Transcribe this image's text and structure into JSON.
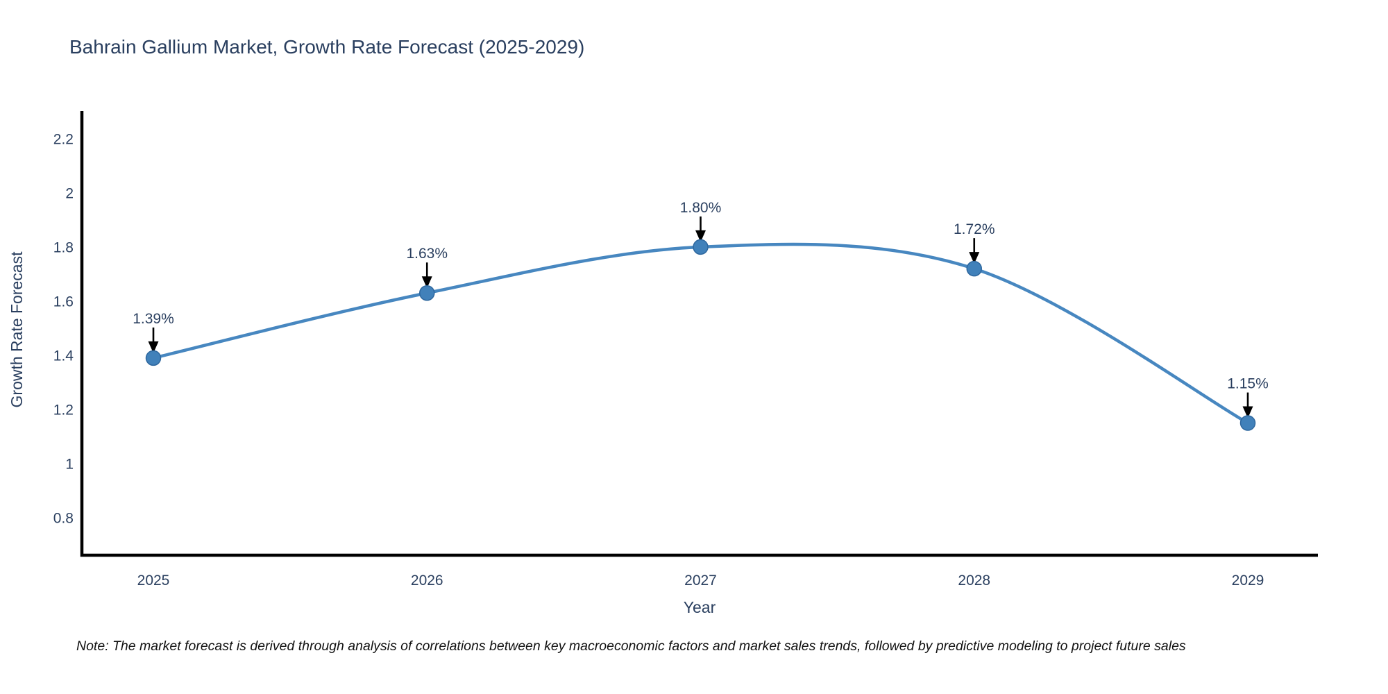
{
  "title": "Bahrain Gallium Market, Growth Rate Forecast (2025-2029)",
  "note": "Note: The market forecast is derived through analysis of correlations between key macroeconomic factors and market sales trends, followed by predictive modeling to project future sales",
  "chart_data": {
    "type": "line",
    "title": "Bahrain Gallium Market, Growth Rate Forecast (2025-2029)",
    "xlabel": "Year",
    "ylabel": "Growth Rate Forecast",
    "x": [
      2025,
      2026,
      2027,
      2028,
      2029
    ],
    "x_tick_labels": [
      "2025",
      "2026",
      "2027",
      "2028",
      "2029"
    ],
    "series": [
      {
        "name": "Growth Rate Forecast",
        "values": [
          1.39,
          1.63,
          1.8,
          1.72,
          1.15
        ]
      }
    ],
    "point_labels": [
      "1.39%",
      "1.63%",
      "1.80%",
      "1.72%",
      "1.15%"
    ],
    "y_tick_labels": [
      "0.8",
      "1",
      "1.2",
      "1.4",
      "1.6",
      "1.8",
      "2",
      "2.2"
    ],
    "y_tick_values": [
      0.8,
      1.0,
      1.2,
      1.4,
      1.6,
      1.8,
      2.0,
      2.2
    ],
    "ylim": [
      0.662,
      2.302
    ],
    "line_shape": "spline",
    "grid": false,
    "legend": "none",
    "colors": {
      "line": "#4787c0",
      "marker_fill": "#4181ba",
      "marker_edge": "#2e679e",
      "axis_line": "#000000",
      "chart_text": "#2a3f5f",
      "annotation_arrow": "#000000",
      "note_text": "#111111"
    }
  }
}
